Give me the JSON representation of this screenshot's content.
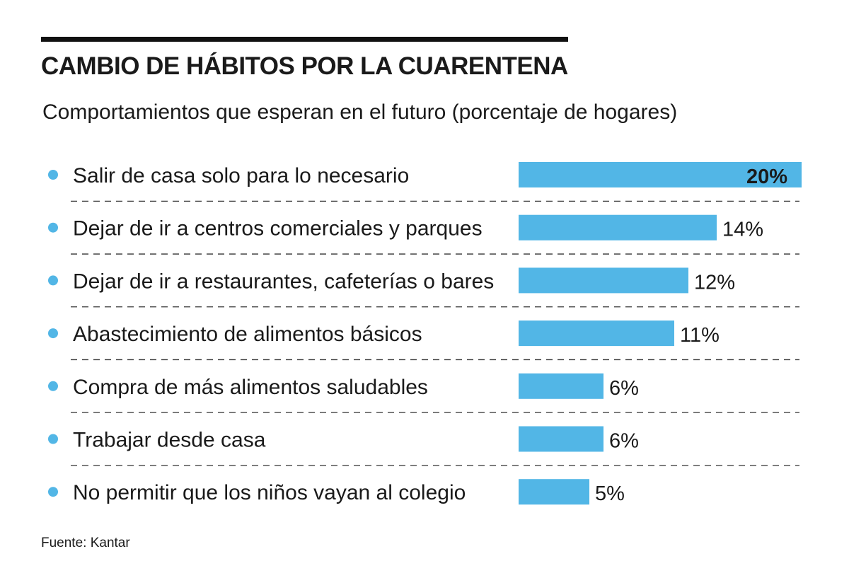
{
  "chart_data": {
    "type": "bar",
    "orientation": "horizontal",
    "title": "CAMBIO DE HÁBITOS POR LA CUARENTENA",
    "subtitle": "Comportamientos que esperan en el futuro (porcentaje de hogares)",
    "source": "Fuente: Kantar",
    "unit": "%",
    "xlim": [
      0,
      20
    ],
    "bar_color": "#52b6e6",
    "categories": [
      "Salir de casa solo para lo necesario",
      "Dejar de ir a centros comerciales y parques",
      "Dejar de ir a restaurantes, cafeterías o bares",
      "Abastecimiento de alimentos básicos",
      "Compra de más alimentos saludables",
      "Trabajar desde casa",
      "No permitir que los niños vayan al colegio"
    ],
    "values": [
      20,
      14,
      12,
      11,
      6,
      6,
      5
    ],
    "labels": [
      "20%",
      "14%",
      "12%",
      "11%",
      "6%",
      "6%",
      "5%"
    ]
  }
}
